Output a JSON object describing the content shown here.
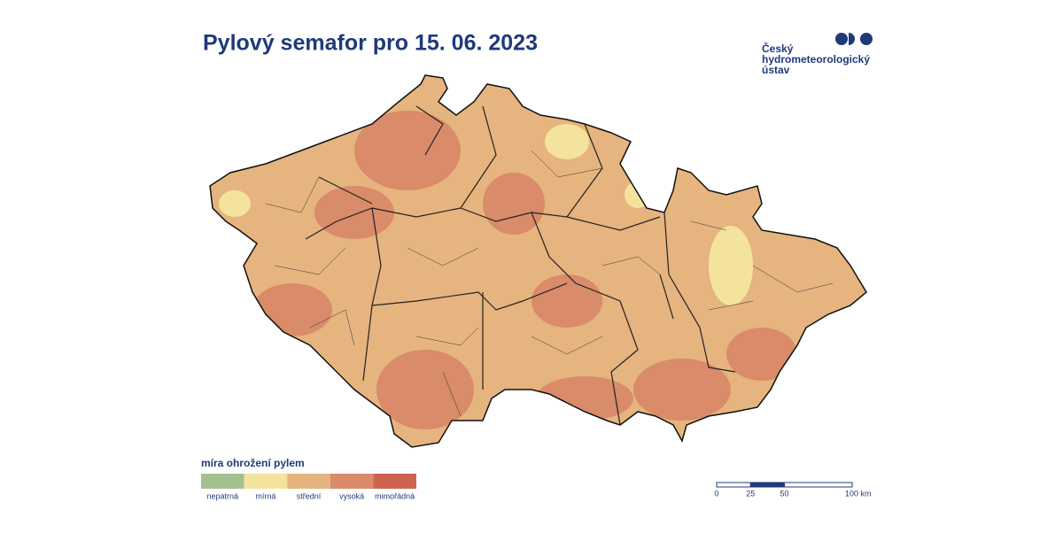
{
  "title": "Pylový semafor pro 15. 06. 2023",
  "logo": {
    "lines": [
      "Český",
      "hydrometeorologický",
      "ústav"
    ]
  },
  "legend": {
    "title": "míra ohrožení pylem",
    "items": [
      {
        "label": "nepatrná",
        "color": "#a3c28f"
      },
      {
        "label": "mírná",
        "color": "#f4e39c"
      },
      {
        "label": "střední",
        "color": "#e6b47e"
      },
      {
        "label": "vysoká",
        "color": "#d98b6a"
      },
      {
        "label": "mimořádná",
        "color": "#cd6450"
      }
    ]
  },
  "scale_bar": {
    "ticks": [
      0,
      25,
      50,
      {
        "value": 100,
        "label": "100 km"
      }
    ],
    "lim": [
      0,
      100
    ]
  }
}
